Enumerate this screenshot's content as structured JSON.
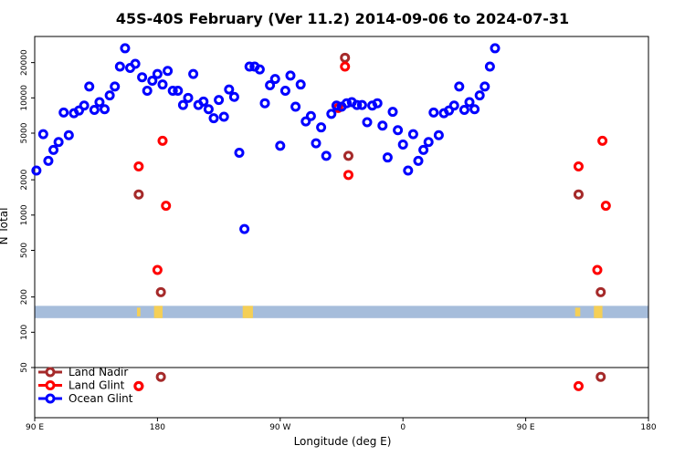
{
  "chart_data": {
    "type": "scatter",
    "title": "45S-40S February (Ver 11.2)   2014-09-06 to 2024-07-31",
    "xlabel": "Longitude (deg E)",
    "ylabel": "N Total",
    "y_scale": "log",
    "x_tick_labels": [
      "90 E",
      "180",
      "90 W",
      "0",
      "90 E",
      "180"
    ],
    "y_tick_labels": [
      "50",
      "100",
      "200",
      "500",
      "1000",
      "2000",
      "5000",
      "10000",
      "20000"
    ],
    "land_band_color": "#a6bddb",
    "land_mark_color": "#f5cf56",
    "legend_position": "bottom-left",
    "series": [
      {
        "name": "Land Nadir",
        "color": "#a52a2a",
        "points": [
          {
            "x": 151,
            "y": 1500
          },
          {
            "x": 164,
            "y": 220
          },
          {
            "x": 272,
            "y": 22000
          },
          {
            "x": 274,
            "y": 3200
          },
          {
            "x": 409,
            "y": 1500
          },
          {
            "x": 422,
            "y": 220
          }
        ]
      },
      {
        "name": "Land Glint",
        "color": "#ff0000",
        "points": [
          {
            "x": 151,
            "y": 2600
          },
          {
            "x": 162,
            "y": 340
          },
          {
            "x": 165,
            "y": 4300
          },
          {
            "x": 167,
            "y": 1200
          },
          {
            "x": 268,
            "y": 8200
          },
          {
            "x": 272,
            "y": 18500
          },
          {
            "x": 274,
            "y": 2200
          },
          {
            "x": 409,
            "y": 2600
          },
          {
            "x": 420,
            "y": 340
          },
          {
            "x": 423,
            "y": 4300
          },
          {
            "x": 425,
            "y": 1200
          }
        ]
      },
      {
        "name": "Ocean Glint",
        "color": "#0000ff",
        "points": [
          {
            "x": 91,
            "y": 2400
          },
          {
            "x": 95,
            "y": 4900
          },
          {
            "x": 98,
            "y": 2900
          },
          {
            "x": 101,
            "y": 3600
          },
          {
            "x": 104,
            "y": 4200
          },
          {
            "x": 107,
            "y": 7500
          },
          {
            "x": 110,
            "y": 4800
          },
          {
            "x": 113,
            "y": 7400
          },
          {
            "x": 116,
            "y": 7800
          },
          {
            "x": 119,
            "y": 8600
          },
          {
            "x": 122,
            "y": 12500
          },
          {
            "x": 125,
            "y": 7900
          },
          {
            "x": 128,
            "y": 9200
          },
          {
            "x": 131,
            "y": 8000
          },
          {
            "x": 134,
            "y": 10500
          },
          {
            "x": 137,
            "y": 12500
          },
          {
            "x": 140,
            "y": 18500
          },
          {
            "x": 143,
            "y": 26500
          },
          {
            "x": 146,
            "y": 18000
          },
          {
            "x": 149,
            "y": 19500
          },
          {
            "x": 153,
            "y": 15000
          },
          {
            "x": 156,
            "y": 11500
          },
          {
            "x": 159,
            "y": 14000
          },
          {
            "x": 162,
            "y": 16000
          },
          {
            "x": 165,
            "y": 13000
          },
          {
            "x": 168,
            "y": 17000
          },
          {
            "x": 171,
            "y": 11500
          },
          {
            "x": 174,
            "y": 11500
          },
          {
            "x": 177,
            "y": 8700
          },
          {
            "x": 180,
            "y": 10000
          },
          {
            "x": 183,
            "y": 16000
          },
          {
            "x": 186,
            "y": 8700
          },
          {
            "x": 189,
            "y": 9300
          },
          {
            "x": 192,
            "y": 8000
          },
          {
            "x": 195,
            "y": 6700
          },
          {
            "x": 198,
            "y": 9600
          },
          {
            "x": 201,
            "y": 6900
          },
          {
            "x": 204,
            "y": 11800
          },
          {
            "x": 207,
            "y": 10200
          },
          {
            "x": 210,
            "y": 3400
          },
          {
            "x": 213,
            "y": 760
          },
          {
            "x": 216,
            "y": 18500
          },
          {
            "x": 219,
            "y": 18500
          },
          {
            "x": 222,
            "y": 17500
          },
          {
            "x": 225,
            "y": 9000
          },
          {
            "x": 228,
            "y": 12800
          },
          {
            "x": 231,
            "y": 14500
          },
          {
            "x": 234,
            "y": 3900
          },
          {
            "x": 237,
            "y": 11500
          },
          {
            "x": 240,
            "y": 15500
          },
          {
            "x": 243,
            "y": 8400
          },
          {
            "x": 246,
            "y": 13000
          },
          {
            "x": 249,
            "y": 6300
          },
          {
            "x": 252,
            "y": 7000
          },
          {
            "x": 255,
            "y": 4100
          },
          {
            "x": 258,
            "y": 5600
          },
          {
            "x": 261,
            "y": 3200
          },
          {
            "x": 264,
            "y": 7300
          },
          {
            "x": 267,
            "y": 8600
          },
          {
            "x": 270,
            "y": 8400
          },
          {
            "x": 273,
            "y": 9000
          },
          {
            "x": 276,
            "y": 9200
          },
          {
            "x": 279,
            "y": 8700
          },
          {
            "x": 282,
            "y": 8700
          },
          {
            "x": 285,
            "y": 6200
          },
          {
            "x": 288,
            "y": 8600
          },
          {
            "x": 291,
            "y": 9000
          },
          {
            "x": 294,
            "y": 5800
          },
          {
            "x": 297,
            "y": 3100
          },
          {
            "x": 300,
            "y": 7600
          },
          {
            "x": 303,
            "y": 5300
          },
          {
            "x": 306,
            "y": 4000
          },
          {
            "x": 309,
            "y": 2400
          },
          {
            "x": 312,
            "y": 4900
          },
          {
            "x": 315,
            "y": 2900
          },
          {
            "x": 318,
            "y": 3600
          },
          {
            "x": 321,
            "y": 4200
          },
          {
            "x": 324,
            "y": 7500
          },
          {
            "x": 327,
            "y": 4800
          },
          {
            "x": 330,
            "y": 7400
          },
          {
            "x": 333,
            "y": 7800
          },
          {
            "x": 336,
            "y": 8600
          },
          {
            "x": 339,
            "y": 12500
          },
          {
            "x": 342,
            "y": 7900
          },
          {
            "x": 345,
            "y": 9200
          },
          {
            "x": 348,
            "y": 8000
          },
          {
            "x": 351,
            "y": 10500
          },
          {
            "x": 354,
            "y": 12500
          },
          {
            "x": 357,
            "y": 18500
          },
          {
            "x": 360,
            "y": 26500
          }
        ]
      }
    ],
    "outside_points": [
      {
        "series": "Land Nadir",
        "x": 151,
        "y": 33
      },
      {
        "series": "Land Glint",
        "x": 151,
        "y": 33
      },
      {
        "series": "Land Nadir",
        "x": 164,
        "y": 39
      },
      {
        "series": "Land Glint",
        "x": 409,
        "y": 33
      },
      {
        "series": "Land Nadir",
        "x": 422,
        "y": 39
      }
    ]
  }
}
